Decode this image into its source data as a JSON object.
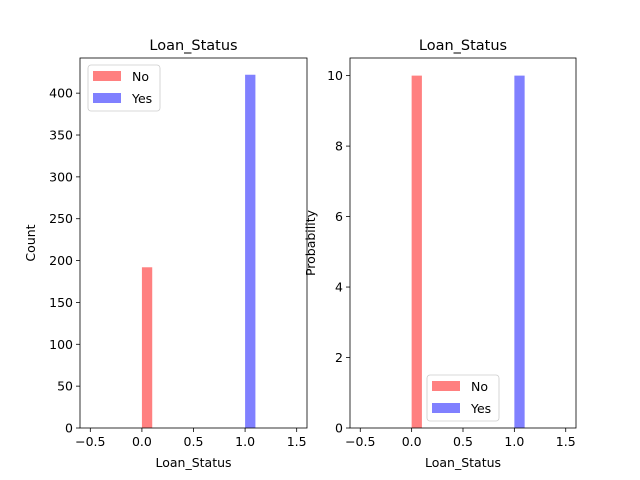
{
  "chart_data": [
    {
      "type": "bar",
      "title": "Loan_Status",
      "xlabel": "Loan_Status",
      "ylabel": "Count",
      "xlim": [
        -0.6,
        1.6
      ],
      "ylim": [
        0,
        442
      ],
      "xticks": [
        -0.5,
        0.0,
        0.5,
        1.0,
        1.5
      ],
      "xtick_labels": [
        "−0.5",
        "0.0",
        "0.5",
        "1.0",
        "1.5"
      ],
      "yticks": [
        0,
        50,
        100,
        150,
        200,
        250,
        300,
        350,
        400
      ],
      "ytick_labels": [
        "0",
        "50",
        "100",
        "150",
        "200",
        "250",
        "300",
        "350",
        "400"
      ],
      "legend": {
        "placement": "upper-left",
        "entries": [
          "No",
          "Yes"
        ]
      },
      "series": [
        {
          "name": "No",
          "color": "#ff8080",
          "x_start": 0.0,
          "x_end": 0.1,
          "value": 192
        },
        {
          "name": "Yes",
          "color": "#8080ff",
          "x_start": 1.0,
          "x_end": 1.1,
          "value": 422
        }
      ]
    },
    {
      "type": "bar",
      "title": "Loan_Status",
      "xlabel": "Loan_Status",
      "ylabel": "Probability",
      "xlim": [
        -0.6,
        1.6
      ],
      "ylim": [
        0,
        10.5
      ],
      "xticks": [
        -0.5,
        0.0,
        0.5,
        1.0,
        1.5
      ],
      "xtick_labels": [
        "−0.5",
        "0.0",
        "0.5",
        "1.0",
        "1.5"
      ],
      "yticks": [
        0,
        2,
        4,
        6,
        8,
        10
      ],
      "ytick_labels": [
        "0",
        "2",
        "4",
        "6",
        "8",
        "10"
      ],
      "legend": {
        "placement": "lower-center",
        "entries": [
          "No",
          "Yes"
        ]
      },
      "series": [
        {
          "name": "No",
          "color": "#ff8080",
          "x_start": 0.0,
          "x_end": 0.1,
          "value": 10
        },
        {
          "name": "Yes",
          "color": "#8080ff",
          "x_start": 1.0,
          "x_end": 1.1,
          "value": 10
        }
      ]
    }
  ]
}
